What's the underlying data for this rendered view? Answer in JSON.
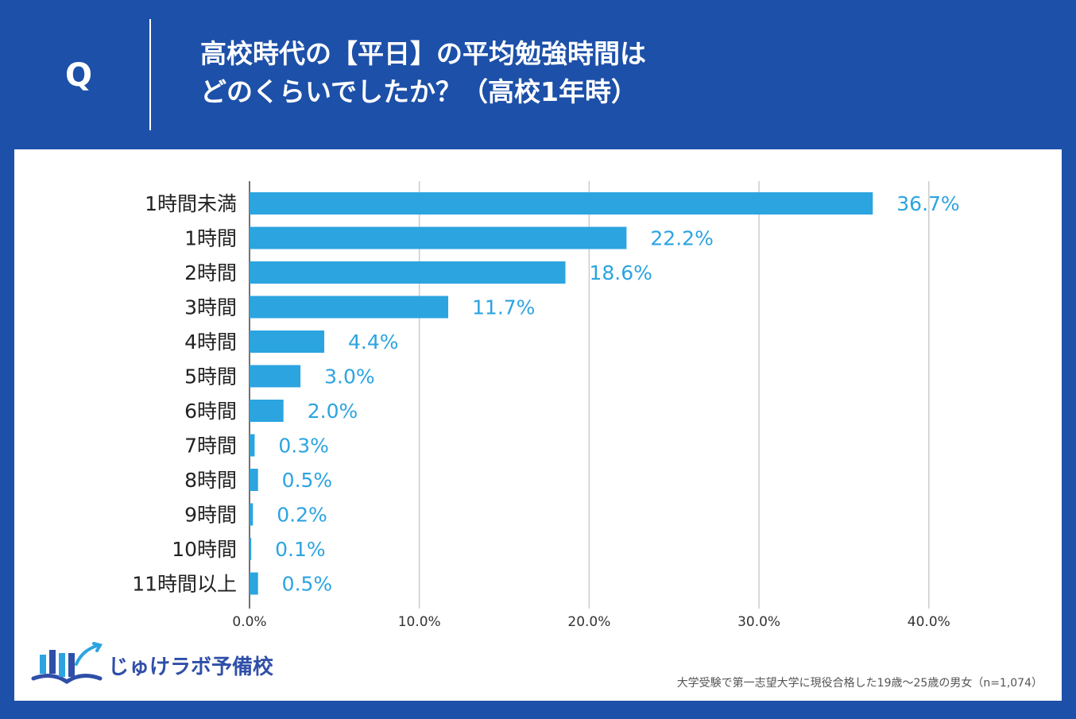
{
  "header": {
    "q_mark": "Q",
    "title_line1": "高校時代の【平日】の平均勉強時間は",
    "title_line2": "どのくらいでしたか？（高校1年時）"
  },
  "colors": {
    "background": "#1d50a8",
    "bar": "#2ca4e0",
    "value_text": "#2ca4e0",
    "grid": "#cccccc",
    "axis": "#444444"
  },
  "chart_data": {
    "type": "bar",
    "orientation": "horizontal",
    "title": "高校時代の【平日】の平均勉強時間はどのくらいでしたか？（高校1年時）",
    "categories": [
      "1時間未満",
      "1時間",
      "2時間",
      "3時間",
      "4時間",
      "5時間",
      "6時間",
      "7時間",
      "8時間",
      "9時間",
      "10時間",
      "11時間以上"
    ],
    "values": [
      36.7,
      22.2,
      18.6,
      11.7,
      4.4,
      3.0,
      2.0,
      0.3,
      0.5,
      0.2,
      0.1,
      0.5
    ],
    "value_labels": [
      "36.7%",
      "22.2%",
      "18.6%",
      "11.7%",
      "4.4%",
      "3.0%",
      "2.0%",
      "0.3%",
      "0.5%",
      "0.2%",
      "0.1%",
      "0.5%"
    ],
    "x_ticks": [
      0,
      10,
      20,
      30,
      40
    ],
    "x_tick_labels": [
      "0.0%",
      "10.0%",
      "20.0%",
      "30.0%",
      "40.0%"
    ],
    "xlim": [
      0,
      40
    ],
    "xlabel": "",
    "ylabel": "",
    "grid": true
  },
  "logo": {
    "icon": "open-book-icon",
    "text": "じゅけラボ予備校"
  },
  "footnote": "大学受験で第一志望大学に現役合格した19歳～25歳の男女（n=1,074）"
}
